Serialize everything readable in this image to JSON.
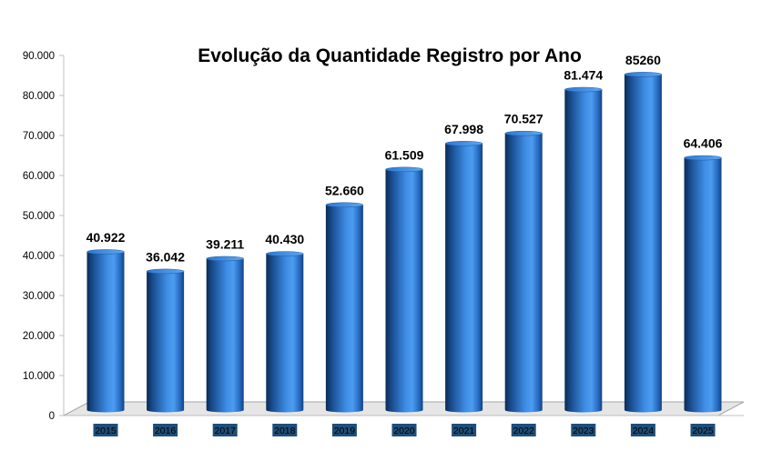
{
  "chart_data": {
    "type": "bar",
    "title": "Evolução da Quantidade Registro por Ano",
    "categories": [
      "2015",
      "2016",
      "2017",
      "2018",
      "2019",
      "2020",
      "2021",
      "2022",
      "2023",
      "2024",
      "2025"
    ],
    "values": [
      40922,
      36042,
      39211,
      40430,
      52660,
      61509,
      67998,
      70527,
      81474,
      85260,
      64406
    ],
    "data_labels": [
      "40.922",
      "36.042",
      "39.211",
      "40.430",
      "52.660",
      "61.509",
      "67.998",
      "70.527",
      "81.474",
      "85260",
      "64.406"
    ],
    "ylim": [
      0,
      90000
    ],
    "y_ticks": [
      0,
      10000,
      20000,
      30000,
      40000,
      50000,
      60000,
      70000,
      80000,
      90000
    ],
    "y_tick_labels": [
      "0",
      "10.000",
      "20.000",
      "30.000",
      "40.000",
      "50.000",
      "60.000",
      "70.000",
      "80.000",
      "90.000"
    ],
    "grid": false,
    "legend": "none",
    "bar_style": "3d-cylinder",
    "colors": {
      "bar_dark": "#0b2c57",
      "bar_mid": "#1f6fd0",
      "bar_light": "#5ea8f0",
      "floor": "#e6e6e6",
      "category_label_bg": "#1f4e79"
    }
  }
}
